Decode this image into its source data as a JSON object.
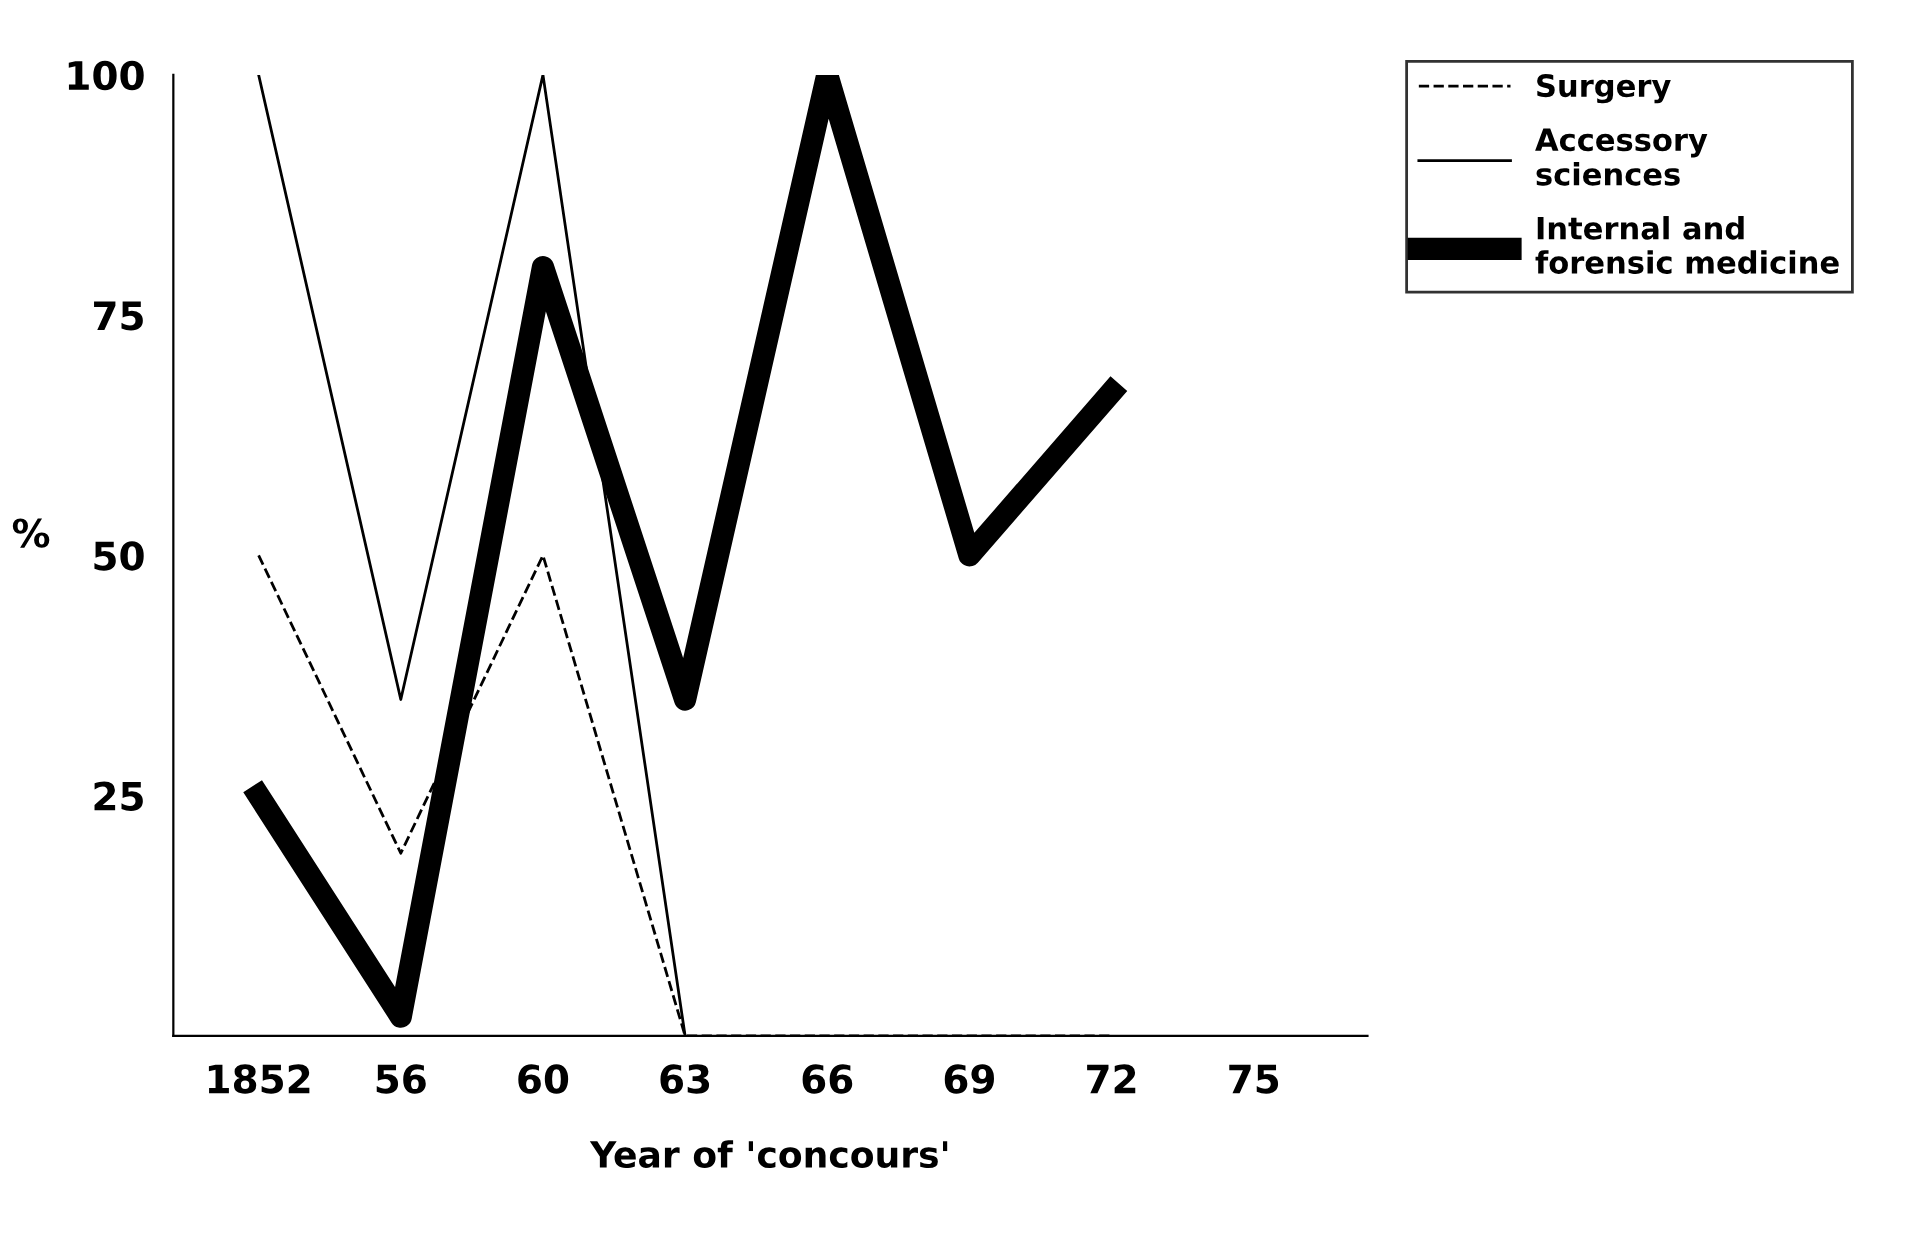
{
  "chart_data": {
    "type": "line",
    "xlabel": "Year of 'concours'",
    "ylabel": "%",
    "categories": [
      "1852",
      "56",
      "60",
      "63",
      "66",
      "69",
      "72",
      "75"
    ],
    "ylim": [
      0,
      100
    ],
    "yticks": [
      25,
      50,
      75,
      100
    ],
    "grid": false,
    "legend": "top right",
    "series": [
      {
        "name": "Surgery",
        "color": "#000000",
        "line_style": "dashed",
        "values": [
          50,
          19,
          50,
          0,
          0,
          0,
          0,
          null
        ]
      },
      {
        "name": "Accessory\nsciences",
        "color": "#000000",
        "line_style": "solid",
        "values": [
          100,
          35,
          100,
          0,
          null,
          null,
          null,
          null
        ]
      },
      {
        "name": "Internal and\nforensic medicine",
        "color": "#000000",
        "line_style": "solid",
        "values": [
          25,
          2,
          80,
          35,
          100,
          50,
          67,
          null
        ]
      }
    ]
  }
}
